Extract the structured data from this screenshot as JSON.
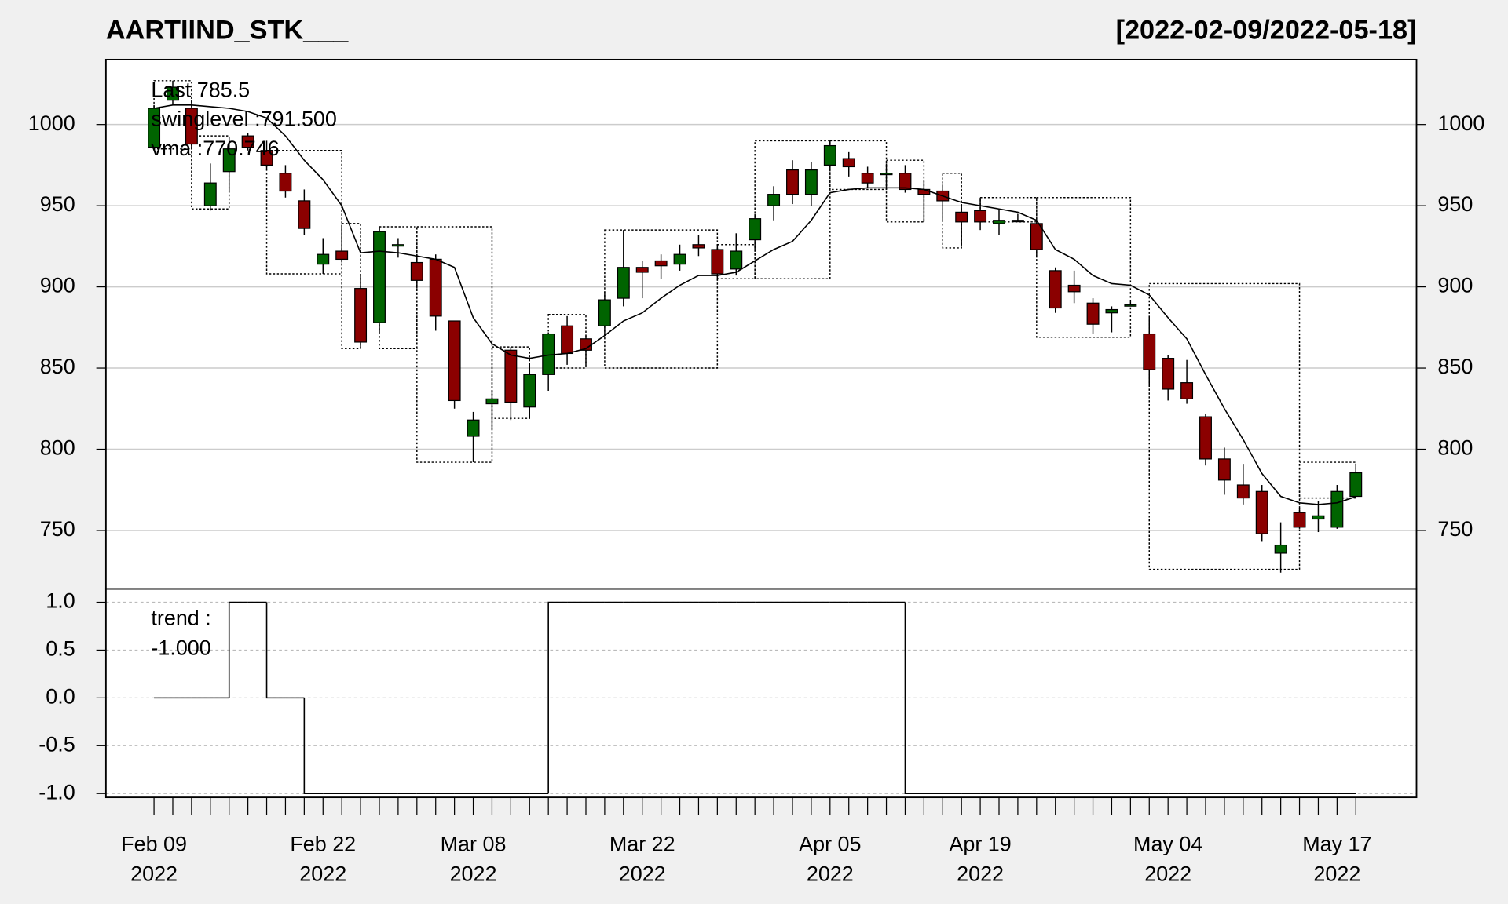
{
  "chart_data": [
    {
      "type": "candlestick",
      "title": "AARTIIND_STK___",
      "subtitle": "[2022-02-09/2022-05-18]",
      "categories": [
        [
          "Feb 09",
          "2022"
        ],
        null,
        null,
        null,
        null,
        null,
        null,
        null,
        null,
        [
          "Feb 22",
          "2022"
        ],
        null,
        null,
        null,
        null,
        null,
        null,
        null,
        [
          "Mar 08",
          "2022"
        ],
        null,
        null,
        null,
        null,
        null,
        null,
        null,
        null,
        [
          "Mar 22",
          "2022"
        ],
        null,
        null,
        null,
        null,
        null,
        null,
        null,
        null,
        null,
        [
          "Apr 05",
          "2022"
        ],
        null,
        null,
        null,
        null,
        null,
        null,
        null,
        [
          "Apr 19",
          "2022"
        ],
        null,
        null,
        null,
        null,
        null,
        null,
        null,
        null,
        null,
        [
          "May 04",
          "2022"
        ],
        null,
        null,
        null,
        null,
        null,
        null,
        null,
        null,
        [
          "May 17",
          "2022"
        ],
        null
      ],
      "open": [
        986,
        1015,
        1010,
        950,
        971,
        993,
        984,
        970,
        953,
        914,
        922,
        899,
        878,
        926,
        915,
        917,
        879,
        808,
        828,
        861,
        826,
        846,
        876,
        868,
        876,
        893,
        912,
        916,
        914,
        926,
        923,
        911,
        929,
        950,
        972,
        957,
        975,
        979,
        970,
        970,
        970,
        960,
        959,
        946,
        947,
        939,
        941,
        939,
        910,
        901,
        890,
        884,
        889,
        871,
        856,
        841,
        820,
        794,
        778,
        774,
        736,
        761,
        757,
        752,
        771
      ],
      "high": [
        1012,
        1027,
        1015,
        976,
        992,
        995,
        990,
        975,
        960,
        930,
        937,
        908,
        937,
        930,
        920,
        920,
        879,
        823,
        836,
        863,
        852,
        872,
        882,
        870,
        897,
        935,
        916,
        920,
        926,
        932,
        926,
        933,
        945,
        962,
        978,
        977,
        990,
        983,
        974,
        976,
        975,
        965,
        963,
        951,
        955,
        948,
        945,
        941,
        912,
        910,
        893,
        888,
        891,
        882,
        858,
        855,
        822,
        801,
        791,
        778,
        755,
        764,
        768,
        778,
        791
      ],
      "low": [
        985,
        1012,
        985,
        947,
        958,
        984,
        972,
        955,
        932,
        908,
        915,
        862,
        872,
        918,
        899,
        873,
        825,
        792,
        812,
        818,
        820,
        836,
        852,
        851,
        870,
        888,
        893,
        905,
        910,
        919,
        904,
        907,
        923,
        941,
        951,
        950,
        973,
        968,
        961,
        960,
        958,
        940,
        940,
        925,
        935,
        932,
        940,
        918,
        884,
        890,
        871,
        872,
        888,
        839,
        830,
        828,
        790,
        772,
        766,
        743,
        724,
        751,
        749,
        751,
        770
      ],
      "close": [
        1010,
        1023,
        988,
        964,
        985,
        986,
        975,
        959,
        936,
        920,
        917,
        866,
        934,
        926,
        904,
        882,
        830,
        818,
        831,
        829,
        846,
        871,
        859,
        861,
        892,
        912,
        909,
        913,
        920,
        924,
        908,
        922,
        942,
        957,
        957,
        972,
        987,
        974,
        964,
        970,
        960,
        957,
        953,
        940,
        940,
        941,
        941,
        923,
        887,
        897,
        877,
        886,
        889,
        849,
        837,
        831,
        794,
        781,
        770,
        748,
        741,
        752,
        759,
        774,
        785.5
      ],
      "up_color": "#006400",
      "down_color": "#8b0000",
      "overlay": {
        "name": "vma",
        "color": "#000000",
        "values": [
          1010,
          1012,
          1012,
          1011,
          1010,
          1008,
          1004,
          993,
          978,
          966,
          950,
          921,
          922,
          921,
          919,
          917,
          912,
          881,
          865,
          858,
          856,
          858,
          859,
          862,
          870,
          879,
          884,
          893,
          901,
          907,
          907,
          909,
          916,
          923,
          928,
          941,
          958,
          960,
          961,
          961,
          961,
          960,
          956,
          952,
          950,
          948,
          946,
          941,
          923,
          917,
          907,
          902,
          901,
          895,
          881,
          868,
          846,
          825,
          806,
          785,
          771,
          767,
          766,
          767,
          770.746
        ]
      },
      "swing_boxes": [
        {
          "x": [
            0,
            2
          ],
          "high": 1027,
          "low": 985
        },
        {
          "x": [
            2,
            4
          ],
          "high": 993,
          "low": 948
        },
        {
          "x": [
            6,
            10
          ],
          "high": 984,
          "low": 908
        },
        {
          "x": [
            10,
            11
          ],
          "high": 939,
          "low": 862
        },
        {
          "x": [
            12,
            14
          ],
          "high": 937,
          "low": 862
        },
        {
          "x": [
            14,
            18
          ],
          "high": 937,
          "low": 792
        },
        {
          "x": [
            18,
            20
          ],
          "high": 863,
          "low": 819
        },
        {
          "x": [
            21,
            23
          ],
          "high": 883,
          "low": 850
        },
        {
          "x": [
            24,
            30
          ],
          "high": 935,
          "low": 850
        },
        {
          "x": [
            30,
            32
          ],
          "high": 926,
          "low": 905
        },
        {
          "x": [
            32,
            36
          ],
          "high": 990,
          "low": 905
        },
        {
          "x": [
            36,
            39
          ],
          "high": 990,
          "low": 960
        },
        {
          "x": [
            39,
            41
          ],
          "high": 978,
          "low": 940
        },
        {
          "x": [
            42,
            43
          ],
          "high": 970,
          "low": 924
        },
        {
          "x": [
            44,
            47
          ],
          "high": 955,
          "low": 940
        },
        {
          "x": [
            47,
            52
          ],
          "high": 955,
          "low": 869
        },
        {
          "x": [
            53,
            61
          ],
          "high": 902,
          "low": 726
        },
        {
          "x": [
            61,
            64
          ],
          "high": 792,
          "low": 770
        }
      ],
      "annotations": [
        {
          "text": "Last 785.5",
          "color": "#006400"
        },
        {
          "text": "swinglevel :791.500",
          "color": "#000000"
        },
        {
          "text": "vma :770.746",
          "color": "#000000"
        }
      ],
      "ylim": [
        714,
        1040
      ],
      "yticks": [
        750,
        800,
        850,
        900,
        950,
        1000
      ],
      "grid": true
    },
    {
      "type": "step",
      "series": [
        {
          "name": "trend",
          "color": "#000000",
          "values": [
            0,
            0,
            0,
            0,
            1,
            1,
            0,
            0,
            -1,
            -1,
            -1,
            -1,
            -1,
            -1,
            -1,
            -1,
            -1,
            -1,
            -1,
            -1,
            -1,
            1,
            1,
            1,
            1,
            1,
            1,
            1,
            1,
            1,
            1,
            1,
            1,
            1,
            1,
            1,
            1,
            1,
            1,
            1,
            -1,
            -1,
            -1,
            -1,
            -1,
            -1,
            -1,
            -1,
            -1,
            -1,
            -1,
            -1,
            -1,
            -1,
            -1,
            -1,
            -1,
            -1,
            -1,
            -1,
            -1,
            -1,
            -1,
            -1,
            -1
          ]
        }
      ],
      "annotations": [
        "trend :",
        "-1.000"
      ],
      "ylim": [
        -1.04,
        1.14
      ],
      "yticks": [
        {
          "value": -1,
          "label": "-1.0"
        },
        {
          "value": -0.5,
          "label": "-0.5"
        },
        {
          "value": 0,
          "label": "0.0"
        },
        {
          "value": 0.5,
          "label": "0.5"
        },
        {
          "value": 1,
          "label": "1.0"
        }
      ],
      "grid": true
    }
  ]
}
